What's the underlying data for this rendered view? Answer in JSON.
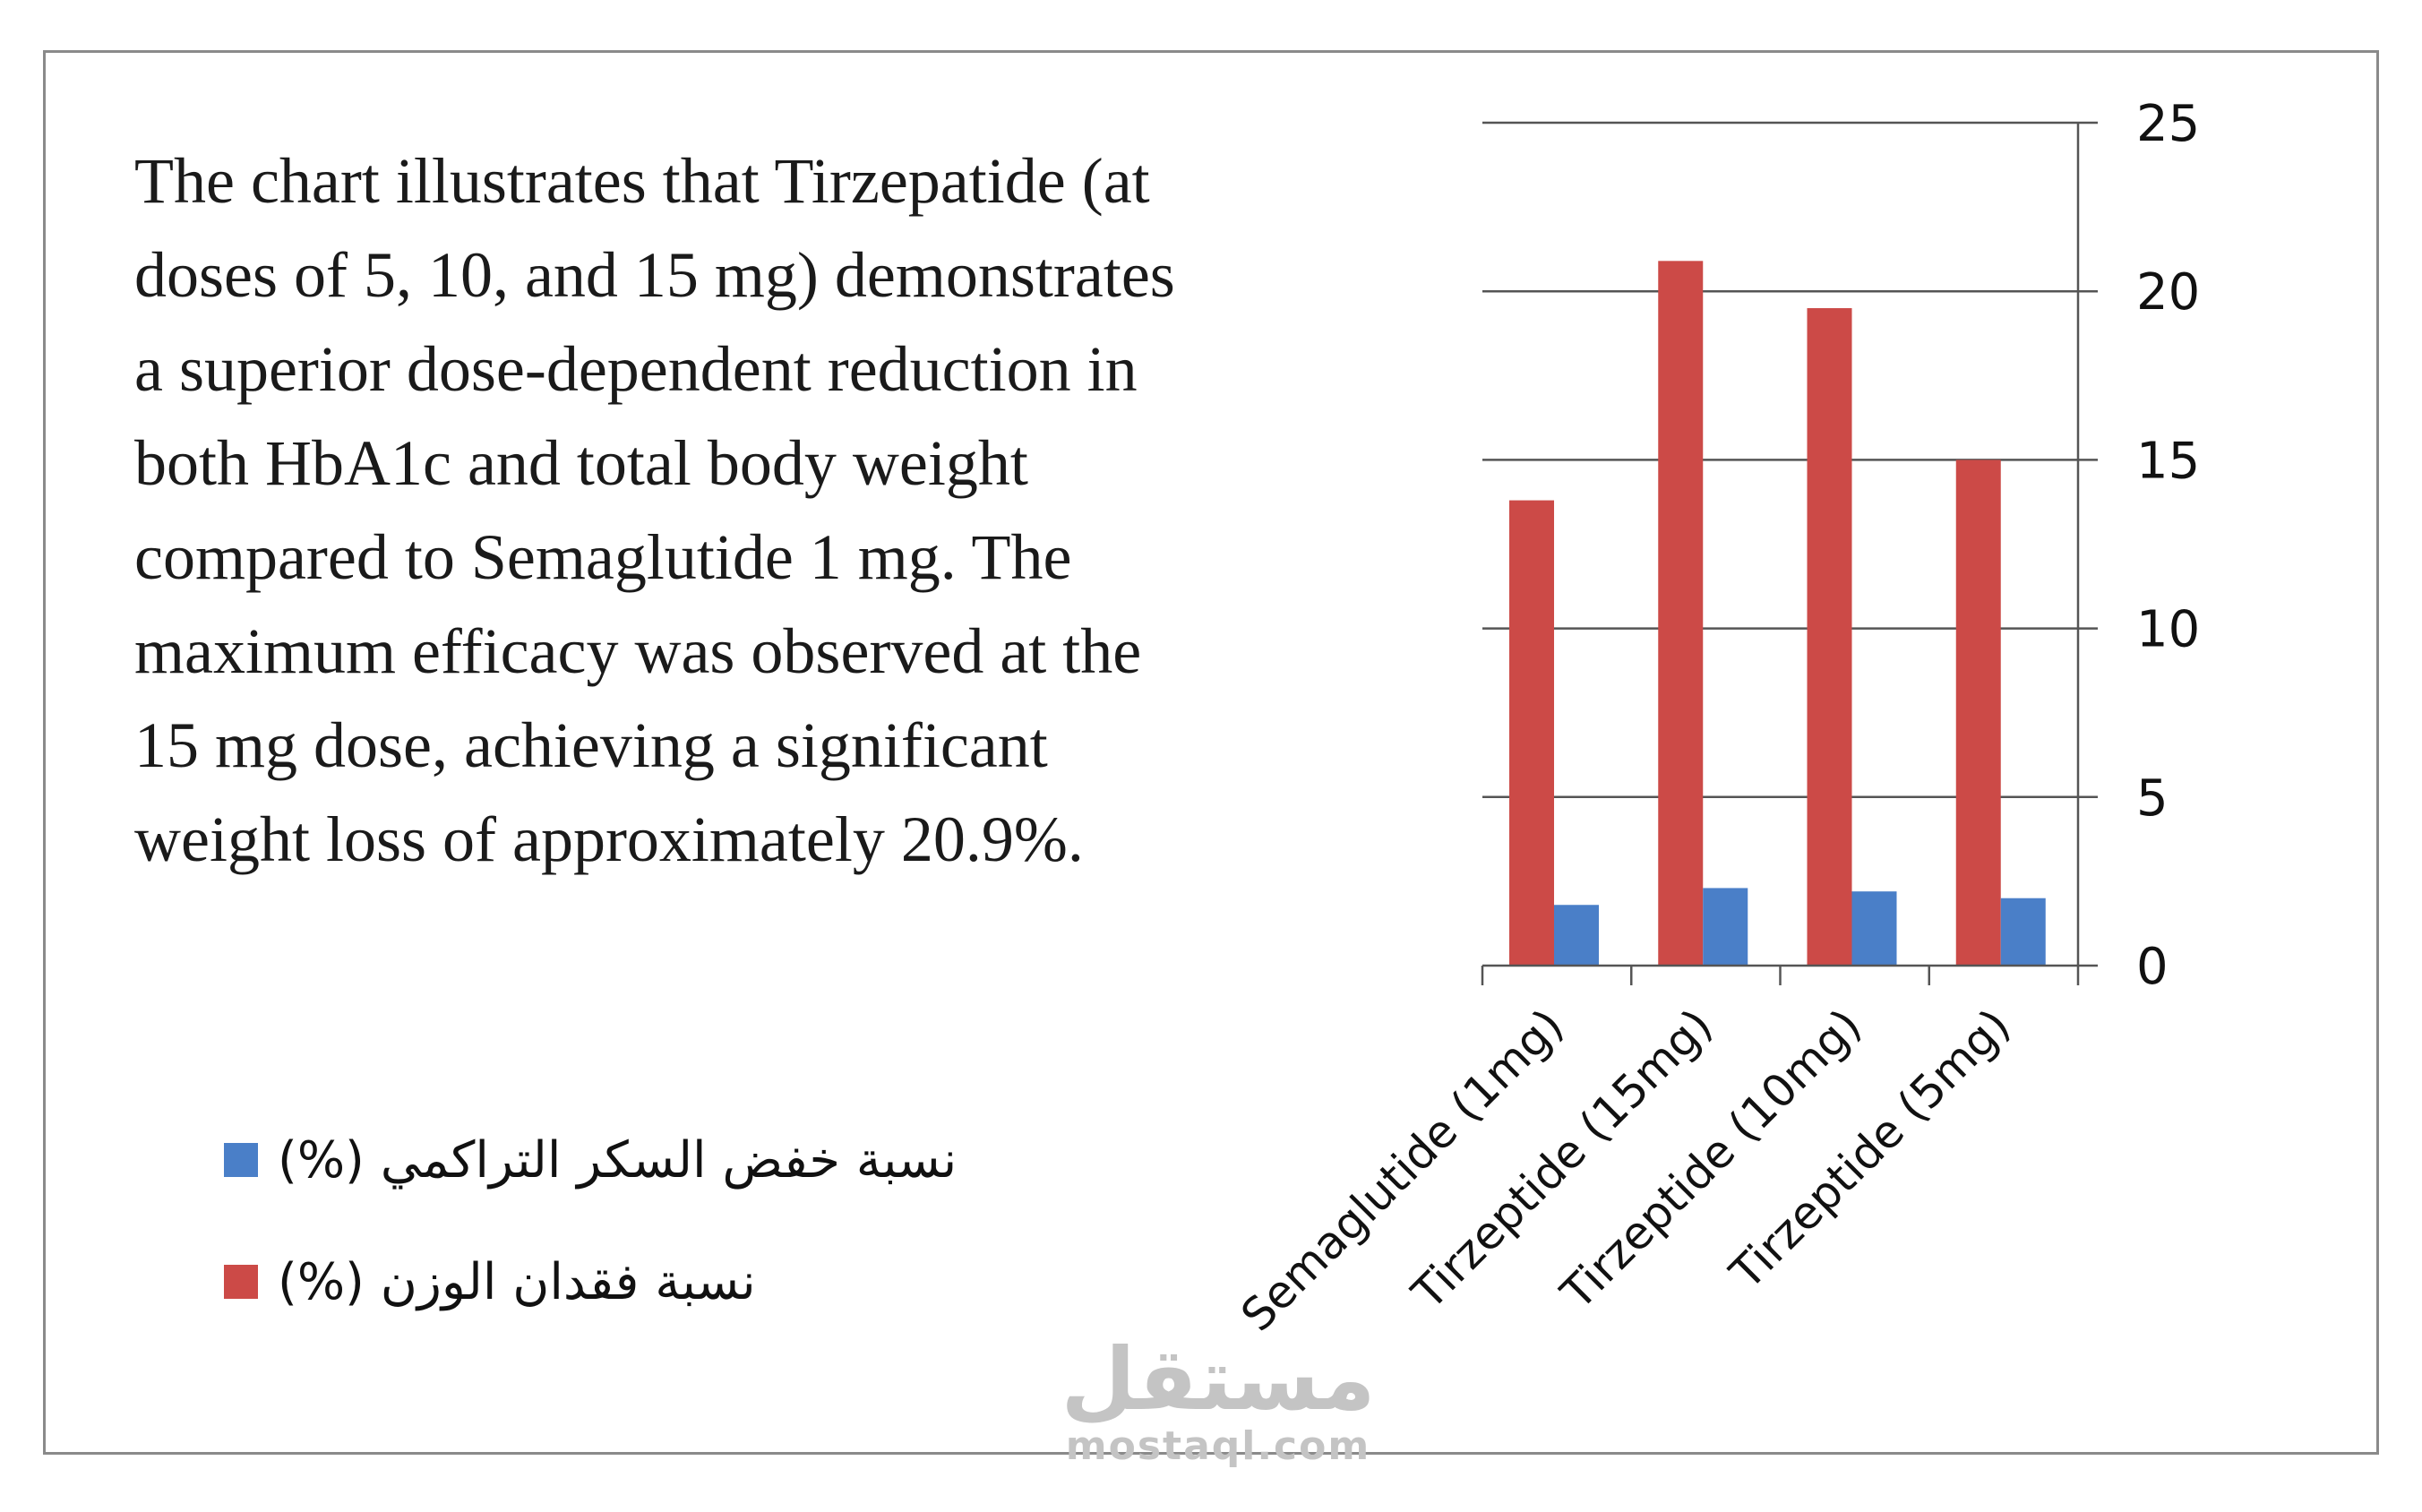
{
  "description": "The chart illustrates that Tirzepatide (at doses of 5, 10, and 15 mg) demonstrates a superior dose-dependent reduction in both HbA1c and total body weight compared to Semaglutide 1 mg. The maximum efficacy was observed at the 15 mg dose, achieving a significant weight loss of approximately 20.9%.",
  "legend": [
    {
      "label": "نسبة خفض السكر التراكمي (%)",
      "color": "#4a7fc8"
    },
    {
      "label": "نسبة فقدان الوزن (%)",
      "color": "#cc4a47"
    }
  ],
  "watermark": {
    "logo": "مستقل",
    "site": "mostaql.com"
  },
  "chart_data": {
    "type": "bar",
    "title": "",
    "xlabel": "",
    "ylabel": "",
    "categories": [
      "Semaglutide (1mg)",
      "Tirzeptide (15mg)",
      "Tirzeptide (10mg)",
      "Tirzeptide (5mg)"
    ],
    "series": [
      {
        "name": "نسبة فقدان الوزن (%)",
        "color": "#cc4a47",
        "values": [
          13.8,
          20.9,
          19.5,
          15.0
        ]
      },
      {
        "name": "نسبة خفض السكر التراكمي (%)",
        "color": "#4a7fc8",
        "values": [
          1.8,
          2.3,
          2.2,
          2.0
        ]
      }
    ],
    "ylim": [
      0,
      25
    ],
    "yticks": [
      0,
      5,
      10,
      15,
      20,
      25
    ],
    "y_axis_position": "right",
    "grid": true,
    "legend_position": "bottom-left"
  }
}
